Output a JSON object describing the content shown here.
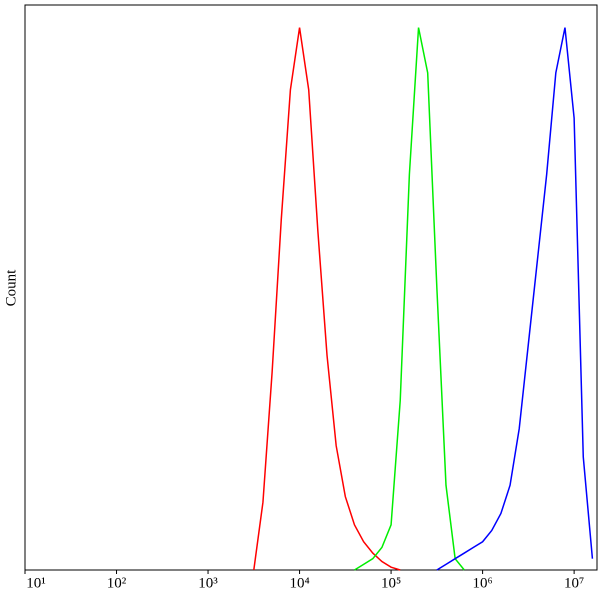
{
  "chart_data": {
    "type": "line",
    "ylabel": "Count",
    "xscale": "log",
    "xlim": [
      10,
      17782794
    ],
    "ylim": [
      0,
      100
    ],
    "xticks": [
      {
        "value": 10,
        "label": "10¹"
      },
      {
        "value": 100,
        "label": "10²"
      },
      {
        "value": 1000,
        "label": "10³"
      },
      {
        "value": 10000,
        "label": "10⁴"
      },
      {
        "value": 100000,
        "label": "10⁵"
      },
      {
        "value": 1000000,
        "label": "10⁶"
      },
      {
        "value": 10000000,
        "label": "10⁷"
      }
    ],
    "x": [
      3162,
      3981,
      5012,
      6310,
      7943,
      10000,
      12589,
      15849,
      19953,
      25119,
      31623,
      39811,
      50119,
      63096,
      79433,
      100000,
      125893,
      158489,
      199526,
      251189,
      316228,
      398107,
      501187,
      630957,
      794328,
      1000000,
      1258925,
      1584893,
      1995262,
      2511886,
      3162278,
      3981072,
      5011872,
      6309573,
      7943282,
      10000000,
      12589254,
      15848932
    ],
    "series": [
      {
        "color": "#ff0000",
        "values": [
          0,
          12,
          35,
          62,
          85,
          96,
          85,
          60,
          38,
          22,
          13,
          8,
          5,
          3,
          1.5,
          0.5,
          0,
          null,
          null,
          null,
          null,
          null,
          null,
          null,
          null,
          null,
          null,
          null,
          null,
          null,
          null,
          null,
          null,
          null,
          null,
          null,
          null,
          null
        ]
      },
      {
        "color": "#00ee00",
        "values": [
          null,
          null,
          null,
          null,
          null,
          null,
          null,
          null,
          null,
          null,
          null,
          0,
          1,
          2,
          4,
          8,
          30,
          70,
          96,
          88,
          50,
          15,
          2,
          0,
          null,
          null,
          null,
          null,
          null,
          null,
          null,
          null,
          null,
          null,
          null,
          null,
          null,
          null
        ]
      },
      {
        "color": "#0000ff",
        "values": [
          null,
          null,
          null,
          null,
          null,
          null,
          null,
          null,
          null,
          null,
          null,
          null,
          null,
          null,
          null,
          null,
          null,
          null,
          null,
          null,
          0,
          1,
          2,
          3,
          4,
          5,
          7,
          10,
          15,
          25,
          40,
          55,
          70,
          88,
          96,
          80,
          20,
          2
        ]
      }
    ]
  }
}
